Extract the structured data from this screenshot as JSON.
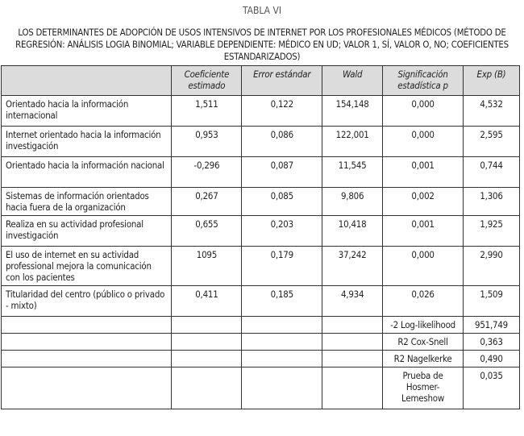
{
  "table_label": "TABLA VI",
  "title": "LOS DETERMINANTES DE ADOPCIÓN DE USOS INTENSIVOS DE INTERNET POR LOS PROFESIONALES MÉDICOS (MÉTODO DE REGRESIÓN: ANÁLISIS LOGIA BINOMIAL; VARIABLE DEPENDIENTE: MÉDICO EN UD; VALOR 1, SÍ, VALOR O, NO; COEFICIENTES ESTANDARIZADOS)",
  "columns": [
    "",
    "Coeficiente estimado",
    "Error estándar",
    "Wald",
    "Significación estadística p",
    "Exp (B)"
  ],
  "rows": [
    [
      "Orientado hacia la información internacional",
      "1,511",
      "0,122",
      "154,148",
      "0,000",
      "4,532"
    ],
    [
      "Internet orientado hacia la información investigación",
      "0,953",
      "0,086",
      "122,001",
      "0,000",
      "2,595"
    ],
    [
      "Orientado hacia la información nacional",
      "-0,296",
      "0,087",
      "11,545",
      "0,001",
      "0,744"
    ],
    [
      "Sistemas de información orientados hacia fuera de la organización",
      "0,267",
      "0,085",
      "9,806",
      "0,002",
      "1,306"
    ],
    [
      "Realiza en su actividad profesional investigación",
      "0,655",
      "0,203",
      "10,418",
      "0,001",
      "1,925"
    ],
    [
      "El uso de internet en su actividad professional mejora la comunicación con los pacientes",
      "1095",
      "0,179",
      "37,242",
      "0,000",
      "2,990"
    ],
    [
      "Titularidad del centro (público o privado - mixto)",
      "0,411",
      "0,185",
      "4,934",
      "0,026",
      "1,509"
    ]
  ],
  "stats": [
    [
      "-2 Log-likelihood",
      "951,749"
    ],
    [
      "R2 Cox-Snell",
      "0,363"
    ],
    [
      "R2 Nagelkerke",
      "0,490"
    ],
    [
      "Prueba de Hosmer-Lemeshow",
      "0,035"
    ]
  ]
}
